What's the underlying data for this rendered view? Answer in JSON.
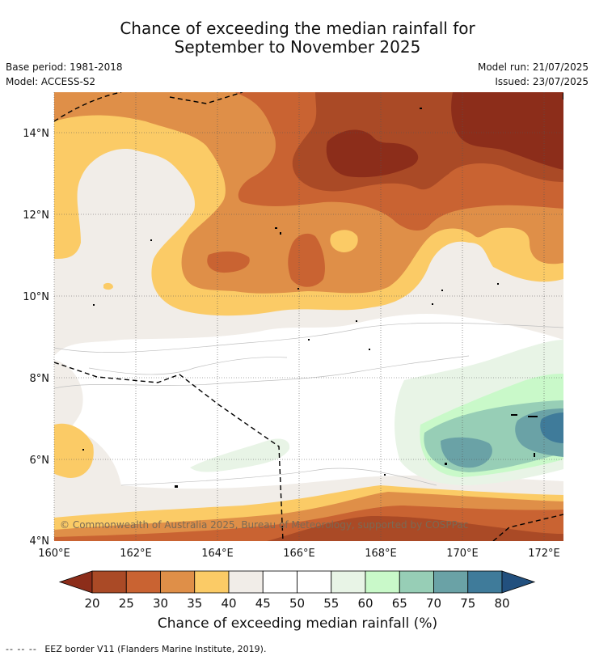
{
  "header": {
    "title_line1": "Chance of exceeding the median rainfall for",
    "title_line2": "September to November 2025",
    "base_period": "Base period: 1981-2018",
    "model": "Model: ACCESS-S2",
    "model_run": "Model run: 21/07/2025",
    "issued": "Issued: 23/07/2025"
  },
  "map": {
    "lat_labels": [
      "14°N",
      "12°N",
      "10°N",
      "8°N",
      "6°N",
      "4°N"
    ],
    "lon_labels": [
      "160°E",
      "162°E",
      "164°E",
      "166°E",
      "168°E",
      "170°E",
      "172°E"
    ],
    "copyright": "© Commonwealth of Australia 2025, Bureau of Meteorology, supported by COSPPac",
    "gridlines": true
  },
  "colorbar": {
    "title": "Chance of exceeding median rainfall (%)",
    "ticks": [
      "20",
      "25",
      "30",
      "35",
      "40",
      "45",
      "50",
      "55",
      "60",
      "65",
      "70",
      "75",
      "80"
    ],
    "colors": [
      "#8c2d1a",
      "#aa4a26",
      "#c96332",
      "#df8f48",
      "#fbcb66",
      "#f1ede8",
      "#ffffff",
      "#ffffff",
      "#e8f4e6",
      "#c9f9c9",
      "#97ceb6",
      "#6aa2a6",
      "#3f7b9a",
      "#22507e"
    ]
  },
  "footer": {
    "legend_symbol": "-- -- --",
    "legend_text": "EEZ border V11 (Flanders Marine Institute, 2019)."
  }
}
